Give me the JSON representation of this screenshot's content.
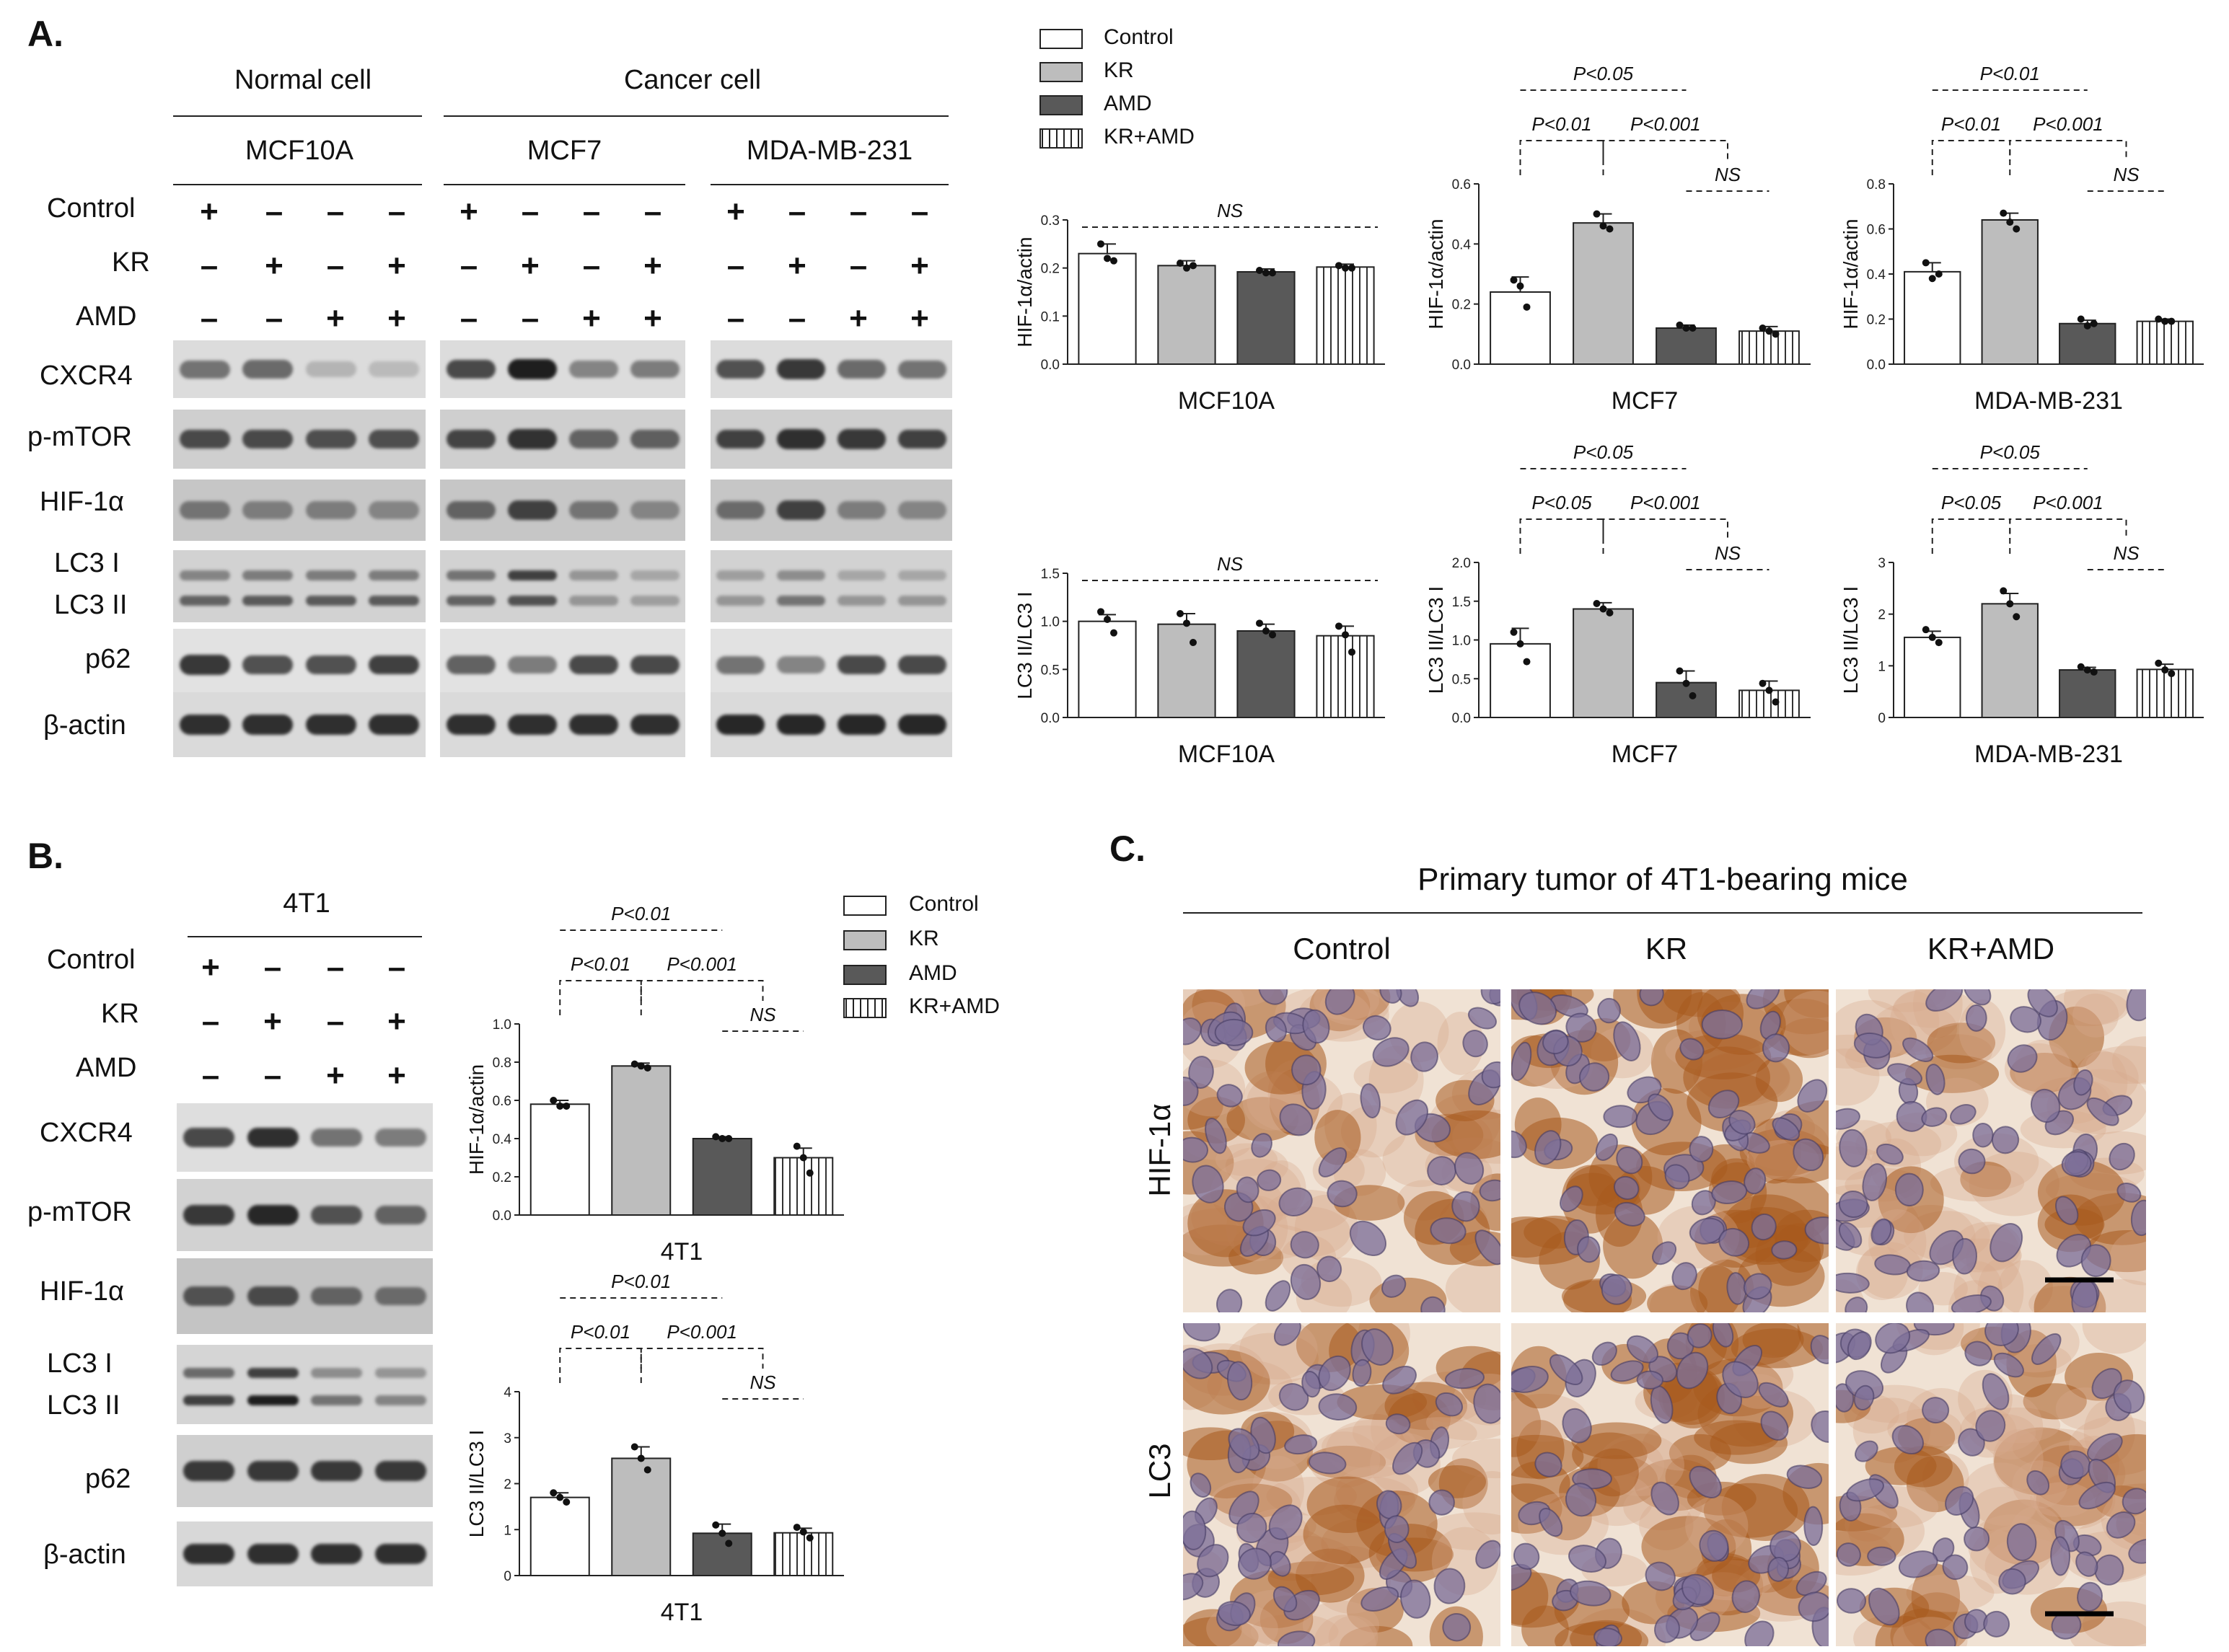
{
  "panel_letters": {
    "a": "A.",
    "b": "B.",
    "c": "C."
  },
  "panelA": {
    "group_normal": "Normal cell",
    "group_cancer": "Cancer cell",
    "lines": [
      "MCF10A",
      "MCF7",
      "MDA-MB-231"
    ],
    "treatment_rows": [
      {
        "label": "Control",
        "marks": [
          "+",
          "-",
          "-",
          "-"
        ]
      },
      {
        "label": "KR",
        "marks": [
          "-",
          "+",
          "-",
          "+"
        ]
      },
      {
        "label": "AMD",
        "marks": [
          "-",
          "-",
          "+",
          "+"
        ]
      }
    ],
    "blot_rows": [
      "CXCR4",
      "p-mTOR",
      "HIF-1α",
      "LC3 I",
      "LC3 II",
      "p62",
      "β-actin"
    ]
  },
  "panelB": {
    "line": "4T1",
    "treatment_rows": [
      {
        "label": "Control",
        "marks": [
          "+",
          "-",
          "-",
          "-"
        ]
      },
      {
        "label": "KR",
        "marks": [
          "-",
          "+",
          "-",
          "+"
        ]
      },
      {
        "label": "AMD",
        "marks": [
          "-",
          "-",
          "+",
          "+"
        ]
      }
    ],
    "blot_rows": [
      "CXCR4",
      "p-mTOR",
      "HIF-1α",
      "LC3 I",
      "LC3 II",
      "p62",
      "β-actin"
    ]
  },
  "panelC": {
    "title": "Primary tumor of 4T1-bearing mice",
    "columns": [
      "Control",
      "KR",
      "KR+AMD"
    ],
    "rows": [
      "HIF-1α",
      "LC3"
    ]
  },
  "legend": {
    "items": [
      {
        "label": "Control",
        "fill": "#ffffff"
      },
      {
        "label": "KR",
        "fill": "#bdbdbd"
      },
      {
        "label": "AMD",
        "fill": "#595959"
      },
      {
        "label": "KR+AMD",
        "fill": "hatch"
      }
    ]
  },
  "colors": {
    "control": "#ffffff",
    "kr": "#bdbdbd",
    "amd": "#595959",
    "kr_amd": "hatch",
    "ihc_brown": "#a8591e",
    "ihc_nuclei": "#7d6f99"
  },
  "chart_data": [
    {
      "id": "a-hif-mcf10a",
      "type": "bar",
      "title": "",
      "xlabel": "MCF10A",
      "ylabel": "HIF-1α/actin",
      "categories": [
        "Control",
        "KR",
        "AMD",
        "KR+AMD"
      ],
      "values": [
        0.23,
        0.205,
        0.192,
        0.202
      ],
      "errors": [
        0.02,
        0.01,
        0.006,
        0.006
      ],
      "points": [
        [
          0.25,
          0.22,
          0.215
        ],
        [
          0.21,
          0.2,
          0.205
        ],
        [
          0.195,
          0.19,
          0.19
        ],
        [
          0.205,
          0.2,
          0.2
        ]
      ],
      "ylim": [
        0,
        0.3
      ],
      "yticks": [
        "0.0",
        "0.1",
        "0.2",
        "0.3"
      ],
      "annotations": [
        {
          "text": "NS",
          "from": 0,
          "to": 3,
          "level": 1,
          "style": "dashed"
        }
      ]
    },
    {
      "id": "a-hif-mcf7",
      "type": "bar",
      "title": "",
      "xlabel": "MCF7",
      "ylabel": "HIF-1α/actin",
      "categories": [
        "Control",
        "KR",
        "AMD",
        "KR+AMD"
      ],
      "values": [
        0.24,
        0.47,
        0.12,
        0.11
      ],
      "errors": [
        0.05,
        0.03,
        0.01,
        0.015
      ],
      "points": [
        [
          0.28,
          0.26,
          0.19
        ],
        [
          0.5,
          0.46,
          0.45
        ],
        [
          0.13,
          0.12,
          0.12
        ],
        [
          0.12,
          0.11,
          0.1
        ]
      ],
      "ylim": [
        0,
        0.6
      ],
      "yticks": [
        "0.0",
        "0.2",
        "0.4",
        "0.6"
      ],
      "annotations": [
        {
          "text": "P<0.05",
          "from": 0,
          "to": 2,
          "level": 3,
          "style": "dashed",
          "kind": "pair"
        },
        {
          "text": "P<0.01",
          "from": 0,
          "to": 1,
          "level": 2,
          "style": "bracket"
        },
        {
          "text": "P<0.001",
          "from": 1,
          "to": 2.5,
          "level": 2,
          "style": "bracket"
        },
        {
          "text": "NS",
          "from": 2,
          "to": 3,
          "level": 1,
          "style": "dashed"
        }
      ]
    },
    {
      "id": "a-hif-mda",
      "type": "bar",
      "title": "",
      "xlabel": "MDA-MB-231",
      "ylabel": "HIF-1α/actin",
      "categories": [
        "Control",
        "KR",
        "AMD",
        "KR+AMD"
      ],
      "values": [
        0.41,
        0.64,
        0.18,
        0.19
      ],
      "errors": [
        0.04,
        0.03,
        0.015,
        0.01
      ],
      "points": [
        [
          0.45,
          0.38,
          0.4
        ],
        [
          0.67,
          0.63,
          0.6
        ],
        [
          0.2,
          0.17,
          0.18
        ],
        [
          0.2,
          0.19,
          0.19
        ]
      ],
      "ylim": [
        0,
        0.8
      ],
      "yticks": [
        "0.0",
        "0.2",
        "0.4",
        "0.6",
        "0.8"
      ],
      "annotations": [
        {
          "text": "P<0.01",
          "from": 0,
          "to": 2,
          "level": 3,
          "style": "dashed",
          "kind": "pair"
        },
        {
          "text": "P<0.01",
          "from": 0,
          "to": 1,
          "level": 2,
          "style": "bracket"
        },
        {
          "text": "P<0.001",
          "from": 1,
          "to": 2.5,
          "level": 2,
          "style": "bracket"
        },
        {
          "text": "NS",
          "from": 2,
          "to": 3,
          "level": 1,
          "style": "dashed"
        }
      ]
    },
    {
      "id": "a-lc3-mcf10a",
      "type": "bar",
      "title": "",
      "xlabel": "MCF10A",
      "ylabel": "LC3 II/LC3 I",
      "categories": [
        "Control",
        "KR",
        "AMD",
        "KR+AMD"
      ],
      "values": [
        1.0,
        0.97,
        0.9,
        0.85
      ],
      "errors": [
        0.07,
        0.11,
        0.07,
        0.1
      ],
      "points": [
        [
          1.1,
          1.02,
          0.88
        ],
        [
          1.08,
          0.98,
          0.78
        ],
        [
          0.98,
          0.9,
          0.86
        ],
        [
          0.95,
          0.86,
          0.68
        ]
      ],
      "ylim": [
        0,
        1.5
      ],
      "yticks": [
        "0.0",
        "0.5",
        "1.0",
        "1.5"
      ],
      "annotations": [
        {
          "text": "NS",
          "from": 0,
          "to": 3,
          "level": 1,
          "style": "dashed"
        }
      ]
    },
    {
      "id": "a-lc3-mcf7",
      "type": "bar",
      "title": "",
      "xlabel": "MCF7",
      "ylabel": "LC3 II/LC3 I",
      "categories": [
        "Control",
        "KR",
        "AMD",
        "KR+AMD"
      ],
      "values": [
        0.95,
        1.4,
        0.45,
        0.35
      ],
      "errors": [
        0.2,
        0.08,
        0.15,
        0.12
      ],
      "points": [
        [
          1.1,
          0.95,
          0.72
        ],
        [
          1.47,
          1.4,
          1.35
        ],
        [
          0.6,
          0.44,
          0.28
        ],
        [
          0.44,
          0.35,
          0.2
        ]
      ],
      "ylim": [
        0,
        2.0
      ],
      "yticks": [
        "0.0",
        "0.5",
        "1.0",
        "1.5",
        "2.0"
      ],
      "annotations": [
        {
          "text": "P<0.05",
          "from": 0,
          "to": 2,
          "level": 3,
          "style": "dashed",
          "kind": "pair"
        },
        {
          "text": "P<0.05",
          "from": 0,
          "to": 1,
          "level": 2,
          "style": "bracket"
        },
        {
          "text": "P<0.001",
          "from": 1,
          "to": 2.5,
          "level": 2,
          "style": "bracket"
        },
        {
          "text": "NS",
          "from": 2,
          "to": 3,
          "level": 1,
          "style": "dashed"
        }
      ]
    },
    {
      "id": "a-lc3-mda",
      "type": "bar",
      "title": "",
      "xlabel": "MDA-MB-231",
      "ylabel": "LC3 II/LC3 I",
      "categories": [
        "Control",
        "KR",
        "AMD",
        "KR+AMD"
      ],
      "values": [
        1.55,
        2.2,
        0.92,
        0.93
      ],
      "errors": [
        0.12,
        0.2,
        0.05,
        0.1
      ],
      "points": [
        [
          1.7,
          1.55,
          1.45
        ],
        [
          2.45,
          2.2,
          1.95
        ],
        [
          0.98,
          0.92,
          0.88
        ],
        [
          1.05,
          0.92,
          0.85
        ]
      ],
      "ylim": [
        0,
        3
      ],
      "yticks": [
        "0",
        "1",
        "2",
        "3"
      ],
      "annotations": [
        {
          "text": "P<0.05",
          "from": 0,
          "to": 2,
          "level": 3,
          "style": "dashed",
          "kind": "pair"
        },
        {
          "text": "P<0.05",
          "from": 0,
          "to": 1,
          "level": 2,
          "style": "bracket"
        },
        {
          "text": "P<0.001",
          "from": 1,
          "to": 2.5,
          "level": 2,
          "style": "bracket"
        },
        {
          "text": "NS",
          "from": 2,
          "to": 3,
          "level": 1,
          "style": "dashed"
        }
      ]
    },
    {
      "id": "b-hif-4t1",
      "type": "bar",
      "title": "",
      "xlabel": "4T1",
      "ylabel": "HIF-1α/actin",
      "categories": [
        "Control",
        "KR",
        "AMD",
        "KR+AMD"
      ],
      "values": [
        0.58,
        0.78,
        0.4,
        0.3
      ],
      "errors": [
        0.02,
        0.015,
        0.01,
        0.05
      ],
      "points": [
        [
          0.6,
          0.57,
          0.57
        ],
        [
          0.79,
          0.78,
          0.77
        ],
        [
          0.41,
          0.4,
          0.4
        ],
        [
          0.36,
          0.3,
          0.22
        ]
      ],
      "ylim": [
        0,
        1.0
      ],
      "yticks": [
        "0.0",
        "0.2",
        "0.4",
        "0.6",
        "0.8",
        "1.0"
      ],
      "annotations": [
        {
          "text": "P<0.01",
          "from": 0,
          "to": 2,
          "level": 3,
          "style": "dashed",
          "kind": "pair"
        },
        {
          "text": "P<0.01",
          "from": 0,
          "to": 1,
          "level": 2,
          "style": "bracket"
        },
        {
          "text": "P<0.001",
          "from": 1,
          "to": 2.5,
          "level": 2,
          "style": "bracket"
        },
        {
          "text": "NS",
          "from": 2,
          "to": 3,
          "level": 1,
          "style": "dashed"
        }
      ]
    },
    {
      "id": "b-lc3-4t1",
      "type": "bar",
      "title": "",
      "xlabel": "4T1",
      "ylabel": "LC3 II/LC3 I",
      "categories": [
        "Control",
        "KR",
        "AMD",
        "KR+AMD"
      ],
      "values": [
        1.7,
        2.55,
        0.92,
        0.93
      ],
      "errors": [
        0.1,
        0.25,
        0.2,
        0.1
      ],
      "points": [
        [
          1.8,
          1.7,
          1.6
        ],
        [
          2.8,
          2.55,
          2.3
        ],
        [
          1.1,
          0.92,
          0.7
        ],
        [
          1.05,
          0.95,
          0.82
        ]
      ],
      "ylim": [
        0,
        4
      ],
      "yticks": [
        "0",
        "1",
        "2",
        "3",
        "4"
      ],
      "annotations": [
        {
          "text": "P<0.01",
          "from": 0,
          "to": 2,
          "level": 3,
          "style": "dashed",
          "kind": "pair"
        },
        {
          "text": "P<0.01",
          "from": 0,
          "to": 1,
          "level": 2,
          "style": "bracket"
        },
        {
          "text": "P<0.001",
          "from": 1,
          "to": 2.5,
          "level": 2,
          "style": "bracket"
        },
        {
          "text": "NS",
          "from": 2,
          "to": 3,
          "level": 1,
          "style": "dashed"
        }
      ]
    }
  ]
}
